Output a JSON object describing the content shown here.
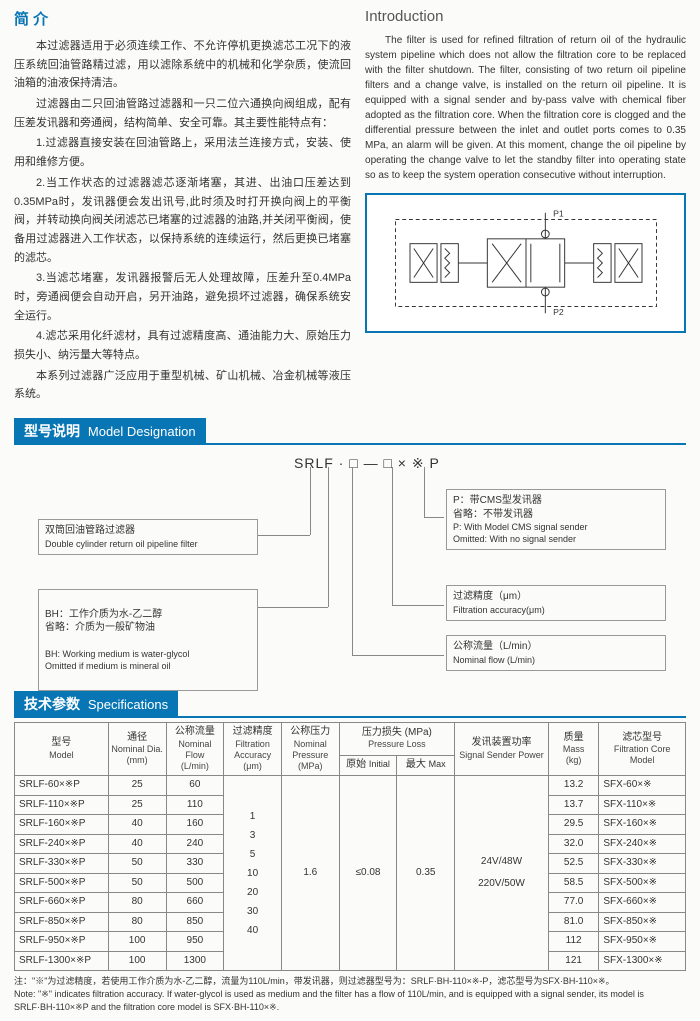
{
  "intro_cn": {
    "title": "简 介",
    "paragraphs": [
      "本过滤器适用于必须连续工作、不允许停机更换滤芯工况下的液压系统回油管路精过滤，用以滤除系统中的机械和化学杂质，使流回油箱的油液保持清洁。",
      "过滤器由二只回油管路过滤器和一只二位六通换向阀组成，配有压差发讯器和旁通阀，结构简单、安全可靠。其主要性能特点有：",
      "1.过滤器直接安装在回油管路上，采用法兰连接方式，安装、使用和维修方便。",
      "2.当工作状态的过滤器滤芯逐渐堵塞，其进、出油口压差达到0.35MPa时，发讯器便会发出讯号,此时须及时打开换向阀上的平衡阀，并转动换向阀关闭滤芯已堵塞的过滤器的油路,并关闭平衡阀，使备用过滤器进入工作状态，以保持系统的连续运行，然后更换已堵塞的滤芯。",
      "3.当滤芯堵塞，发讯器报警后无人处理故障，压差升至0.4MPa时，旁通阀便会自动开启，另开油路，避免损坏过滤器，确保系统安全运行。",
      "4.滤芯采用化纤滤材，具有过滤精度高、通油能力大、原始压力损失小、纳污量大等特点。",
      "本系列过滤器广泛应用于重型机械、矿山机械、冶金机械等液压系统。"
    ]
  },
  "intro_en": {
    "title": "Introduction",
    "body": "The filter is used for refined filtration of return oil of the hydraulic system pipeline which does not allow the filtration core to be replaced with the filter shutdown. The filter, consisting of two return oil pipeline filters and a change valve, is installed on the return oil pipeline. It is equipped with a signal sender and by-pass valve with chemical fiber adopted as the filtration core. When the filtration core is clogged and the differential pressure between the inlet and outlet ports comes to 0.35 MPa, an alarm will be given. At this moment, change the oil pipeline by operating the change valve to let the standby filter into operating state so as to keep the system operation consecutive without interruption."
  },
  "diagram": {
    "p1": "P1",
    "p2": "P2"
  },
  "model_designation": {
    "header_cn": "型号说明",
    "header_en": "Model Designation",
    "code": "SRLF · □ — □ × ※ P",
    "desc1_cn": "双筒回油管路过滤器",
    "desc1_en": "Double cylinder return oil pipeline filter",
    "desc2_cn": "BH：工作介质为水-乙二醇\n省略：介质为一般矿物油",
    "desc2_en": "BH: Working medium is water-glycol\nOmitted if medium is mineral oil",
    "desc3_cn": "P：带CMS型发讯器\n省略：不带发讯器",
    "desc3_en": "P: With Model CMS signal sender\nOmitted: With no signal sender",
    "desc4_cn": "过滤精度（μm）",
    "desc4_en": "Filtration accuracy(μm)",
    "desc5_cn": "公称流量（L/min）",
    "desc5_en": "Nominal flow (L/min)"
  },
  "specs": {
    "header_cn": "技术参数",
    "header_en": "Specifications",
    "columns": {
      "model": {
        "cn": "型号",
        "en": "Model"
      },
      "dia": {
        "cn": "通径",
        "en": "Nominal Dia.",
        "unit": "(mm)"
      },
      "flow": {
        "cn": "公称流量",
        "en": "Nominal Flow",
        "unit": "(L/min)"
      },
      "accuracy": {
        "cn": "过滤精度",
        "en": "Filtration Accuracy",
        "unit": "(μm)"
      },
      "pressure": {
        "cn": "公称压力",
        "en": "Nominal Pressure",
        "unit": "(MPa)"
      },
      "ploss": {
        "cn": "压力损失 (MPa)",
        "en": "Pressure Loss"
      },
      "ploss_initial": {
        "cn": "原始",
        "en": "Initial"
      },
      "ploss_max": {
        "cn": "最大",
        "en": "Max"
      },
      "sender": {
        "cn": "发讯装置功率",
        "en": "Signal Sender Power"
      },
      "mass": {
        "cn": "质量",
        "en": "Mass",
        "unit": "(kg)"
      },
      "core": {
        "cn": "滤芯型号",
        "en": "Filtration Core Model"
      }
    },
    "shared": {
      "accuracy": "1\n3\n5\n10\n20\n30\n40",
      "nominal_pressure": "1.6",
      "ploss_initial": "≤0.08",
      "ploss_max": "0.35",
      "sender_power": "24V/48W\n220V/50W"
    },
    "rows": [
      {
        "model": "SRLF-60×※P",
        "dia": "25",
        "flow": "60",
        "mass": "13.2",
        "core": "SFX-60×※"
      },
      {
        "model": "SRLF-110×※P",
        "dia": "25",
        "flow": "110",
        "mass": "13.7",
        "core": "SFX-110×※"
      },
      {
        "model": "SRLF-160×※P",
        "dia": "40",
        "flow": "160",
        "mass": "29.5",
        "core": "SFX-160×※"
      },
      {
        "model": "SRLF-240×※P",
        "dia": "40",
        "flow": "240",
        "mass": "32.0",
        "core": "SFX-240×※"
      },
      {
        "model": "SRLF-330×※P",
        "dia": "50",
        "flow": "330",
        "mass": "52.5",
        "core": "SFX-330×※"
      },
      {
        "model": "SRLF-500×※P",
        "dia": "50",
        "flow": "500",
        "mass": "58.5",
        "core": "SFX-500×※"
      },
      {
        "model": "SRLF-660×※P",
        "dia": "80",
        "flow": "660",
        "mass": "77.0",
        "core": "SFX-660×※"
      },
      {
        "model": "SRLF-850×※P",
        "dia": "80",
        "flow": "850",
        "mass": "81.0",
        "core": "SFX-850×※"
      },
      {
        "model": "SRLF-950×※P",
        "dia": "100",
        "flow": "950",
        "mass": "112",
        "core": "SFX-950×※"
      },
      {
        "model": "SRLF-1300×※P",
        "dia": "100",
        "flow": "1300",
        "mass": "121",
        "core": "SFX-1300×※"
      }
    ],
    "footnote_cn": "注：\"※\"为过滤精度，若使用工作介质为水-乙二醇，流量为110L/min，带发讯器，则过滤器型号为：SRLF·BH-110×※-P，滤芯型号为SFX·BH-110×※。",
    "footnote_en": "Note: \"※\" indicates filtration accuracy. If water-glycol is used as medium and the filter has a flow of 110L/min, and is equipped with a signal sender, its model is SRLF·BH-110×※P and the filtration core model is SFX·BH-110×※."
  }
}
